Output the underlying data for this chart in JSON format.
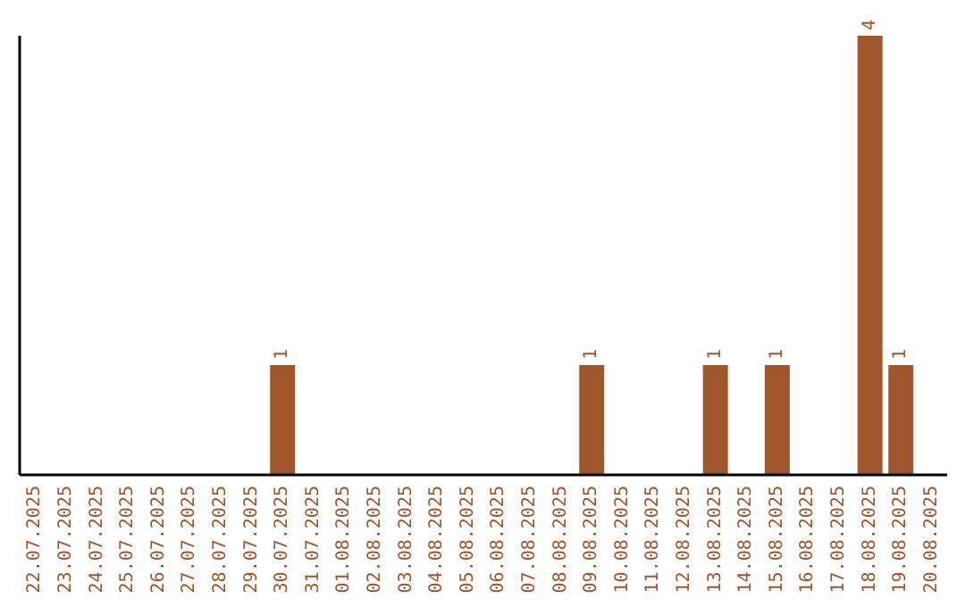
{
  "chart_data": {
    "type": "bar",
    "categories": [
      "22.07.2025",
      "23.07.2025",
      "24.07.2025",
      "25.07.2025",
      "26.07.2025",
      "27.07.2025",
      "28.07.2025",
      "29.07.2025",
      "30.07.2025",
      "31.07.2025",
      "01.08.2025",
      "02.08.2025",
      "03.08.2025",
      "04.08.2025",
      "05.08.2025",
      "06.08.2025",
      "07.08.2025",
      "08.08.2025",
      "09.08.2025",
      "10.08.2025",
      "11.08.2025",
      "12.08.2025",
      "13.08.2025",
      "14.08.2025",
      "15.08.2025",
      "16.08.2025",
      "17.08.2025",
      "18.08.2025",
      "19.08.2025",
      "20.08.2025"
    ],
    "values": [
      0,
      0,
      0,
      0,
      0,
      0,
      0,
      0,
      1,
      0,
      0,
      0,
      0,
      0,
      0,
      0,
      0,
      0,
      1,
      0,
      0,
      0,
      1,
      0,
      1,
      0,
      0,
      4,
      1,
      0
    ],
    "value_labels": [
      null,
      null,
      null,
      null,
      null,
      null,
      null,
      null,
      "1",
      null,
      null,
      null,
      null,
      null,
      null,
      null,
      null,
      null,
      "1",
      null,
      null,
      null,
      "1",
      null,
      "1",
      null,
      null,
      "4",
      "1",
      null
    ],
    "color": "#a0562b"
  }
}
